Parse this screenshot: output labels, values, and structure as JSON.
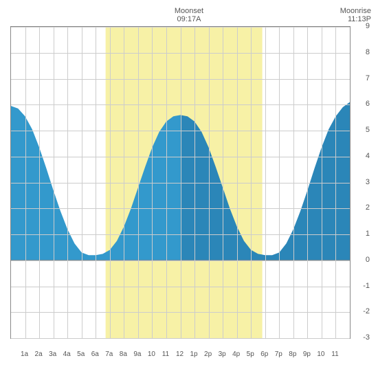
{
  "header": {
    "moonset": {
      "label": "Moonset",
      "time": "09:17A"
    },
    "moonrise": {
      "label": "Moonrise",
      "time": "11:13P"
    }
  },
  "chart": {
    "type": "area",
    "xlim": [
      0,
      24
    ],
    "ylim": [
      -3,
      9
    ],
    "x_ticks": [
      1,
      2,
      3,
      4,
      5,
      6,
      7,
      8,
      9,
      10,
      11,
      12,
      13,
      14,
      15,
      16,
      17,
      18,
      19,
      20,
      21,
      22,
      23
    ],
    "x_labels": [
      "1a",
      "2a",
      "3a",
      "4a",
      "5a",
      "6a",
      "7a",
      "8a",
      "9a",
      "10",
      "11",
      "12",
      "1p",
      "2p",
      "3p",
      "4p",
      "5p",
      "6p",
      "7p",
      "8p",
      "9p",
      "10",
      "11"
    ],
    "y_ticks": [
      -3,
      -2,
      -1,
      0,
      1,
      2,
      3,
      4,
      5,
      6,
      7,
      8,
      9
    ],
    "grid_color": "#cccccc",
    "border_color": "#888888",
    "background_color": "#ffffff",
    "daylight_band": {
      "start": 6.7,
      "end": 17.8,
      "color": "#f7f1a6"
    },
    "noon_line": 12.0,
    "fill_color_left": "#3399cc",
    "fill_color_right": "#2b86b8",
    "baseline": 0,
    "series": [
      {
        "x": 0.0,
        "y": 5.95
      },
      {
        "x": 0.5,
        "y": 5.85
      },
      {
        "x": 1.0,
        "y": 5.55
      },
      {
        "x": 1.5,
        "y": 5.05
      },
      {
        "x": 2.0,
        "y": 4.35
      },
      {
        "x": 2.5,
        "y": 3.55
      },
      {
        "x": 3.0,
        "y": 2.7
      },
      {
        "x": 3.5,
        "y": 1.9
      },
      {
        "x": 4.0,
        "y": 1.2
      },
      {
        "x": 4.5,
        "y": 0.65
      },
      {
        "x": 5.0,
        "y": 0.3
      },
      {
        "x": 5.5,
        "y": 0.2
      },
      {
        "x": 6.0,
        "y": 0.2
      },
      {
        "x": 6.5,
        "y": 0.25
      },
      {
        "x": 7.0,
        "y": 0.4
      },
      {
        "x": 7.5,
        "y": 0.75
      },
      {
        "x": 8.0,
        "y": 1.3
      },
      {
        "x": 8.5,
        "y": 2.0
      },
      {
        "x": 9.0,
        "y": 2.8
      },
      {
        "x": 9.5,
        "y": 3.6
      },
      {
        "x": 10.0,
        "y": 4.35
      },
      {
        "x": 10.5,
        "y": 4.95
      },
      {
        "x": 11.0,
        "y": 5.35
      },
      {
        "x": 11.5,
        "y": 5.55
      },
      {
        "x": 12.0,
        "y": 5.6
      },
      {
        "x": 12.5,
        "y": 5.55
      },
      {
        "x": 13.0,
        "y": 5.35
      },
      {
        "x": 13.5,
        "y": 4.95
      },
      {
        "x": 14.0,
        "y": 4.35
      },
      {
        "x": 14.5,
        "y": 3.6
      },
      {
        "x": 15.0,
        "y": 2.8
      },
      {
        "x": 15.5,
        "y": 2.0
      },
      {
        "x": 16.0,
        "y": 1.3
      },
      {
        "x": 16.5,
        "y": 0.75
      },
      {
        "x": 17.0,
        "y": 0.4
      },
      {
        "x": 17.5,
        "y": 0.25
      },
      {
        "x": 18.0,
        "y": 0.2
      },
      {
        "x": 18.5,
        "y": 0.2
      },
      {
        "x": 19.0,
        "y": 0.3
      },
      {
        "x": 19.5,
        "y": 0.65
      },
      {
        "x": 20.0,
        "y": 1.2
      },
      {
        "x": 20.5,
        "y": 1.9
      },
      {
        "x": 21.0,
        "y": 2.7
      },
      {
        "x": 21.5,
        "y": 3.55
      },
      {
        "x": 22.0,
        "y": 4.35
      },
      {
        "x": 22.5,
        "y": 5.05
      },
      {
        "x": 23.0,
        "y": 5.55
      },
      {
        "x": 23.5,
        "y": 5.9
      },
      {
        "x": 24.0,
        "y": 6.1
      }
    ],
    "label_fontsize": 11,
    "tick_fontsize": 10
  }
}
